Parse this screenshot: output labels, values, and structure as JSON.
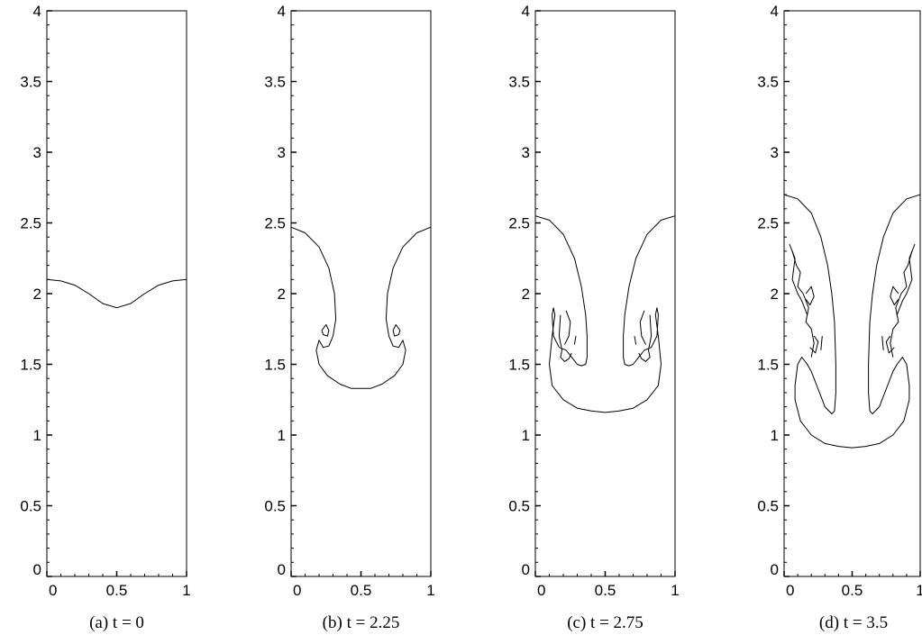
{
  "chart_data": [
    {
      "type": "line",
      "caption": "(a) t = 0",
      "xlim": [
        0,
        1
      ],
      "ylim": [
        0,
        4
      ],
      "xticks": [
        "0",
        "0.5",
        "1"
      ],
      "yticks": [
        "0",
        "0.5",
        "1",
        "1.5",
        "2",
        "2.5",
        "3",
        "3.5",
        "4"
      ],
      "interfaces": [
        {
          "x": [
            0,
            0.1,
            0.2,
            0.3,
            0.4,
            0.5,
            0.6,
            0.7,
            0.8,
            0.9,
            1.0
          ],
          "y": [
            2.1,
            2.09,
            2.06,
            2.0,
            1.93,
            1.9,
            1.93,
            2.0,
            2.06,
            2.09,
            2.1
          ]
        }
      ]
    },
    {
      "type": "line",
      "caption": "(b) t = 2.25",
      "xlim": [
        0,
        1
      ],
      "ylim": [
        0,
        4
      ],
      "xticks": [
        "0",
        "0.5",
        "1"
      ],
      "yticks": [
        "0",
        "0.5",
        "1",
        "1.5",
        "2",
        "2.5",
        "3",
        "3.5",
        "4"
      ],
      "interfaces": [
        {
          "x": [
            0,
            0.1,
            0.2,
            0.27,
            0.31,
            0.32,
            0.3,
            0.27,
            0.23,
            0.2,
            0.18,
            0.2,
            0.26,
            0.35,
            0.43,
            0.5,
            0.57,
            0.65,
            0.74,
            0.8,
            0.82,
            0.8,
            0.77,
            0.73,
            0.7,
            0.68,
            0.69,
            0.73,
            0.8,
            0.9,
            1.0
          ],
          "y": [
            2.47,
            2.43,
            2.33,
            2.18,
            2.0,
            1.82,
            1.7,
            1.63,
            1.62,
            1.67,
            1.6,
            1.5,
            1.42,
            1.36,
            1.33,
            1.33,
            1.33,
            1.36,
            1.42,
            1.5,
            1.6,
            1.67,
            1.62,
            1.63,
            1.7,
            1.82,
            2.0,
            2.18,
            2.33,
            2.43,
            2.47
          ]
        },
        {
          "x": [
            0.22,
            0.25,
            0.27,
            0.26,
            0.23,
            0.22
          ],
          "y": [
            1.74,
            1.78,
            1.74,
            1.7,
            1.71,
            1.74
          ]
        },
        {
          "x": [
            0.78,
            0.75,
            0.73,
            0.74,
            0.77,
            0.78
          ],
          "y": [
            1.74,
            1.78,
            1.74,
            1.7,
            1.71,
            1.74
          ]
        }
      ]
    },
    {
      "type": "line",
      "caption": "(c) t = 2.75",
      "xlim": [
        0,
        1
      ],
      "ylim": [
        0,
        4
      ],
      "xticks": [
        "0",
        "0.5",
        "1"
      ],
      "yticks": [
        "0",
        "0.5",
        "1",
        "1.5",
        "2",
        "2.5",
        "3",
        "3.5",
        "4"
      ],
      "interfaces": [
        {
          "x": [
            0,
            0.1,
            0.2,
            0.28,
            0.33,
            0.36,
            0.37,
            0.37,
            0.36,
            0.33,
            0.3,
            0.26,
            0.22,
            0.17,
            0.13,
            0.12,
            0.13,
            0.14,
            0.12,
            0.1,
            0.12,
            0.2,
            0.3,
            0.4,
            0.5,
            0.6,
            0.7,
            0.8,
            0.88,
            0.9,
            0.88,
            0.86,
            0.87,
            0.88,
            0.87,
            0.83,
            0.78,
            0.74,
            0.7,
            0.67,
            0.64,
            0.63,
            0.63,
            0.64,
            0.67,
            0.72,
            0.8,
            0.9,
            1.0
          ],
          "y": [
            2.55,
            2.52,
            2.42,
            2.25,
            2.05,
            1.85,
            1.7,
            1.55,
            1.5,
            1.49,
            1.5,
            1.55,
            1.6,
            1.62,
            1.7,
            1.85,
            1.9,
            1.85,
            1.7,
            1.5,
            1.35,
            1.25,
            1.19,
            1.17,
            1.16,
            1.17,
            1.19,
            1.25,
            1.35,
            1.5,
            1.7,
            1.85,
            1.9,
            1.85,
            1.7,
            1.62,
            1.6,
            1.55,
            1.5,
            1.49,
            1.5,
            1.55,
            1.7,
            1.85,
            2.05,
            2.25,
            2.42,
            2.52,
            2.55
          ]
        },
        {
          "x": [
            0.18,
            0.17,
            0.19,
            0.18,
            0.21,
            0.24,
            0.26
          ],
          "y": [
            1.85,
            1.7,
            1.6,
            1.55,
            1.52,
            1.54,
            1.58
          ]
        },
        {
          "x": [
            0.22,
            0.25,
            0.24,
            0.21
          ],
          "y": [
            1.88,
            1.8,
            1.7,
            1.64
          ]
        },
        {
          "x": [
            0.28,
            0.29
          ],
          "y": [
            1.64,
            1.7
          ]
        },
        {
          "x": [
            0.82,
            0.83,
            0.81,
            0.82,
            0.79,
            0.76,
            0.74
          ],
          "y": [
            1.85,
            1.7,
            1.6,
            1.55,
            1.52,
            1.54,
            1.58
          ]
        },
        {
          "x": [
            0.78,
            0.75,
            0.76,
            0.79
          ],
          "y": [
            1.88,
            1.8,
            1.7,
            1.64
          ]
        },
        {
          "x": [
            0.72,
            0.71
          ],
          "y": [
            1.64,
            1.7
          ]
        }
      ]
    },
    {
      "type": "line",
      "caption": "(d) t = 3.5",
      "xlim": [
        0,
        1
      ],
      "ylim": [
        0,
        4
      ],
      "xticks": [
        "0",
        "0.5",
        "1"
      ],
      "yticks": [
        "0",
        "0.5",
        "1",
        "1.5",
        "2",
        "2.5",
        "3",
        "3.5",
        "4"
      ],
      "interfaces": [
        {
          "x": [
            0,
            0.1,
            0.2,
            0.27,
            0.32,
            0.35,
            0.37,
            0.38,
            0.38,
            0.37,
            0.35,
            0.3,
            0.24,
            0.2,
            0.17,
            0.13,
            0.1,
            0.08,
            0.08,
            0.12,
            0.2,
            0.3,
            0.4,
            0.5,
            0.6,
            0.7,
            0.8,
            0.88,
            0.92,
            0.92,
            0.9,
            0.87,
            0.83,
            0.8,
            0.76,
            0.7,
            0.65,
            0.63,
            0.62,
            0.62,
            0.63,
            0.65,
            0.68,
            0.73,
            0.8,
            0.9,
            1.0
          ],
          "y": [
            2.7,
            2.67,
            2.57,
            2.4,
            2.2,
            2.0,
            1.8,
            1.5,
            1.3,
            1.17,
            1.15,
            1.2,
            1.35,
            1.45,
            1.5,
            1.55,
            1.5,
            1.35,
            1.25,
            1.1,
            1.0,
            0.94,
            0.92,
            0.91,
            0.92,
            0.94,
            1.0,
            1.1,
            1.25,
            1.35,
            1.5,
            1.55,
            1.5,
            1.45,
            1.35,
            1.2,
            1.15,
            1.17,
            1.3,
            1.5,
            1.8,
            2.0,
            2.2,
            2.4,
            2.57,
            2.67,
            2.7
          ]
        },
        {
          "x": [
            0.06,
            0.09,
            0.12,
            0.1,
            0.14,
            0.18,
            0.16,
            0.2,
            0.22,
            0.2
          ],
          "y": [
            2.3,
            2.2,
            2.15,
            2.05,
            2.0,
            1.9,
            1.8,
            1.75,
            1.65,
            1.55
          ]
        },
        {
          "x": [
            0.04,
            0.08,
            0.06,
            0.1,
            0.13,
            0.17
          ],
          "y": [
            2.35,
            2.25,
            2.1,
            2.0,
            1.95,
            1.85
          ]
        },
        {
          "x": [
            0.16,
            0.2,
            0.22,
            0.19,
            0.16
          ],
          "y": [
            2.0,
            2.05,
            1.98,
            1.92,
            1.96
          ]
        },
        {
          "x": [
            0.19,
            0.23,
            0.25,
            0.22
          ],
          "y": [
            1.62,
            1.58,
            1.66,
            1.7
          ]
        },
        {
          "x": [
            0.27,
            0.28
          ],
          "y": [
            1.6,
            1.7
          ]
        },
        {
          "x": [
            0.94,
            0.91,
            0.88,
            0.9,
            0.86,
            0.82,
            0.84,
            0.8,
            0.78,
            0.8
          ],
          "y": [
            2.3,
            2.2,
            2.15,
            2.05,
            2.0,
            1.9,
            1.8,
            1.75,
            1.65,
            1.55
          ]
        },
        {
          "x": [
            0.96,
            0.92,
            0.94,
            0.9,
            0.87,
            0.83
          ],
          "y": [
            2.35,
            2.25,
            2.1,
            2.0,
            1.95,
            1.85
          ]
        },
        {
          "x": [
            0.84,
            0.8,
            0.78,
            0.81,
            0.84
          ],
          "y": [
            2.0,
            2.05,
            1.98,
            1.92,
            1.96
          ]
        },
        {
          "x": [
            0.81,
            0.77,
            0.75,
            0.78
          ],
          "y": [
            1.62,
            1.58,
            1.66,
            1.7
          ]
        },
        {
          "x": [
            0.73,
            0.72
          ],
          "y": [
            1.6,
            1.7
          ]
        }
      ]
    }
  ]
}
